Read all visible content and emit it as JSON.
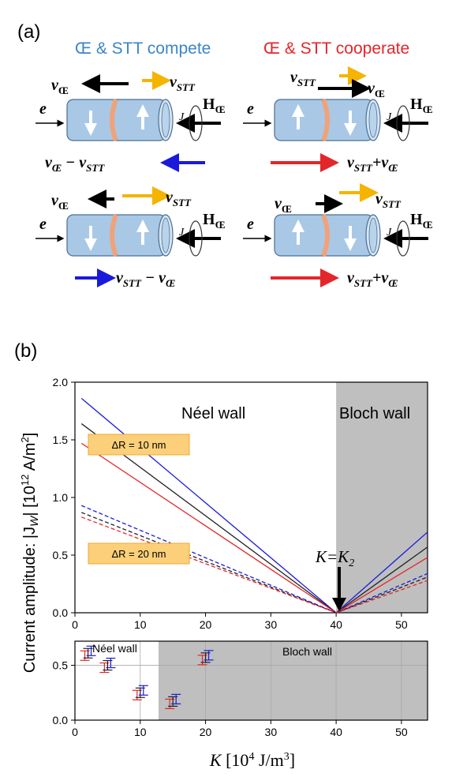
{
  "panel_a": {
    "label": "(a)",
    "left_header": "Œ & STT compete",
    "right_header": "Œ & STT cooperate",
    "colors": {
      "compete": "#3a86c8",
      "cooperate": "#e3262a",
      "stt": "#f4b400",
      "oe": "#000000",
      "sum_red": "#e3262a",
      "sum_blue": "#1a1adb",
      "cylinder": "#a9c8e6",
      "wall": "#f0a27a"
    },
    "symbols": {
      "v_oe": "v",
      "oe_sub": "Œ",
      "stt_sub": "STT",
      "e": "e",
      "J": "J",
      "H": "H",
      "minus": "−",
      "plus": "+"
    }
  },
  "panel_b": {
    "label": "(b)",
    "ylabel": "Current amplitude: |J",
    "ylabel_sub": "W",
    "ylabel_tail": "| [10",
    "ylabel_exp": "12",
    "ylabel_unit": " A/m",
    "ylabel_unit_exp": "2",
    "ylabel_close": "]",
    "xlabel": "K",
    "xlabel_unit": " [10",
    "xlabel_exp": "4",
    "xlabel_unit2": " J/m",
    "xlabel_unit_exp": "3",
    "xlabel_close": "]",
    "neel_label": "Néel wall",
    "bloch_label": "Bloch wall",
    "box1": "ΔR = 10 nm",
    "box2": "ΔR = 20 nm",
    "k_label": "K=K",
    "k_sub": "2",
    "lower_neel": "Néel wall",
    "lower_bloch": "Bloch wall"
  },
  "chart_data": [
    {
      "type": "line",
      "xlim": [
        0,
        54
      ],
      "ylim": [
        0,
        2.0
      ],
      "xticks": [
        "0",
        "10",
        "20",
        "30",
        "40",
        "50"
      ],
      "yticks": [
        "0.0",
        "0.5",
        "1.0",
        "1.5",
        "2.0"
      ],
      "shaded_region": [
        40,
        54
      ],
      "series": [
        {
          "color": "#1a1adb",
          "dash": false,
          "x": [
            1,
            40,
            54
          ],
          "y": [
            1.86,
            0,
            0.7
          ]
        },
        {
          "color": "#222222",
          "dash": false,
          "x": [
            1,
            40,
            54
          ],
          "y": [
            1.64,
            0,
            0.57
          ]
        },
        {
          "color": "#e3262a",
          "dash": false,
          "x": [
            1,
            40,
            54
          ],
          "y": [
            1.47,
            0,
            0.48
          ]
        },
        {
          "color": "#1a1adb",
          "dash": true,
          "x": [
            1,
            40,
            54
          ],
          "y": [
            0.93,
            0,
            0.34
          ]
        },
        {
          "color": "#222222",
          "dash": true,
          "x": [
            1,
            40,
            54
          ],
          "y": [
            0.87,
            0,
            0.31
          ]
        },
        {
          "color": "#e3262a",
          "dash": true,
          "x": [
            1,
            40,
            54
          ],
          "y": [
            0.83,
            0,
            0.28
          ]
        }
      ]
    },
    {
      "type": "scatter",
      "xlim": [
        0,
        54
      ],
      "ylim": [
        0,
        0.72
      ],
      "xticks": [
        "0",
        "10",
        "20",
        "30",
        "40",
        "50"
      ],
      "yticks": [
        "0.0",
        "0.5"
      ],
      "shaded_region": [
        12.8,
        54
      ],
      "groups": [
        {
          "x": 2.0,
          "y": 0.61
        },
        {
          "x": 5.0,
          "y": 0.5
        },
        {
          "x": 10.0,
          "y": 0.25
        },
        {
          "x": 15.0,
          "y": 0.17
        },
        {
          "x": 20.0,
          "y": 0.57
        }
      ]
    }
  ]
}
